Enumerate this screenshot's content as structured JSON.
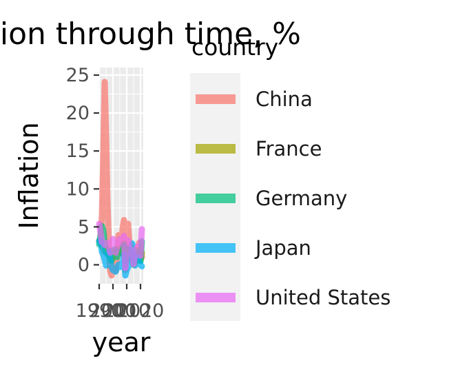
{
  "chart_data": {
    "type": "line",
    "title": "Inflation through time, %",
    "xlabel": "year",
    "ylabel": "Inflation",
    "xlim": [
      1990,
      2022
    ],
    "ylim": [
      -2.5,
      26
    ],
    "x_ticks": [
      1990,
      2000,
      2010,
      2020
    ],
    "x_tick_labels": [
      "1990",
      "2000",
      "2010",
      "2020"
    ],
    "y_ticks": [
      0,
      5,
      10,
      15,
      20,
      25
    ],
    "y_tick_labels": [
      "0",
      "5",
      "10",
      "15",
      "20",
      "25"
    ],
    "grid": true,
    "legend": {
      "title": "country",
      "position": "right"
    },
    "x": [
      1990,
      1991,
      1992,
      1993,
      1994,
      1995,
      1996,
      1997,
      1998,
      1999,
      2000,
      2001,
      2002,
      2003,
      2004,
      2005,
      2006,
      2007,
      2008,
      2009,
      2010,
      2011,
      2012,
      2013,
      2014,
      2015,
      2016,
      2017,
      2018,
      2019,
      2020,
      2021
    ],
    "series": [
      {
        "name": "China",
        "color": "#F8766D",
        "values": [
          3.1,
          3.4,
          6.4,
          14.6,
          24.1,
          17.1,
          8.3,
          2.8,
          -0.8,
          -1.4,
          0.3,
          0.7,
          -0.8,
          1.2,
          3.9,
          1.8,
          1.6,
          4.8,
          5.9,
          -0.7,
          3.3,
          5.4,
          2.6,
          2.6,
          2.0,
          1.4,
          2.0,
          1.6,
          2.1,
          2.9,
          2.4,
          1.0
        ]
      },
      {
        "name": "France",
        "color": "#A3A500",
        "values": [
          3.2,
          3.2,
          2.4,
          2.1,
          1.7,
          1.8,
          2.0,
          1.2,
          0.6,
          0.5,
          1.7,
          1.6,
          1.9,
          2.1,
          2.1,
          1.7,
          1.7,
          1.5,
          2.8,
          0.1,
          1.5,
          2.1,
          2.0,
          0.9,
          0.5,
          0.0,
          0.2,
          1.0,
          1.9,
          1.1,
          0.5,
          1.6
        ]
      },
      {
        "name": "Germany",
        "color": "#00BF7D",
        "values": [
          2.7,
          4.0,
          5.1,
          4.5,
          2.7,
          1.7,
          1.4,
          1.9,
          0.9,
          0.6,
          1.4,
          2.0,
          1.4,
          1.0,
          1.7,
          1.5,
          1.6,
          2.3,
          2.6,
          0.3,
          1.1,
          2.1,
          2.0,
          1.5,
          0.9,
          0.5,
          0.5,
          1.5,
          1.7,
          1.4,
          0.5,
          3.1
        ]
      },
      {
        "name": "Japan",
        "color": "#00B0F6",
        "values": [
          3.1,
          3.3,
          1.7,
          1.3,
          0.7,
          -0.1,
          0.1,
          1.7,
          0.7,
          -0.3,
          -0.7,
          -0.8,
          -0.9,
          -0.3,
          0.0,
          -0.3,
          0.2,
          0.1,
          1.4,
          -1.4,
          -0.7,
          -0.3,
          0.0,
          0.4,
          2.8,
          0.8,
          -0.1,
          0.5,
          1.0,
          0.5,
          0.0,
          -0.2
        ]
      },
      {
        "name": "United States",
        "color": "#E76BF3",
        "values": [
          5.4,
          4.2,
          3.0,
          3.0,
          2.6,
          2.8,
          2.9,
          2.3,
          1.6,
          2.2,
          3.4,
          2.8,
          1.6,
          2.3,
          2.7,
          3.4,
          3.2,
          2.9,
          3.8,
          -0.4,
          1.6,
          3.2,
          2.1,
          1.5,
          1.6,
          0.1,
          1.3,
          2.1,
          2.4,
          1.8,
          1.2,
          4.7
        ]
      }
    ]
  }
}
